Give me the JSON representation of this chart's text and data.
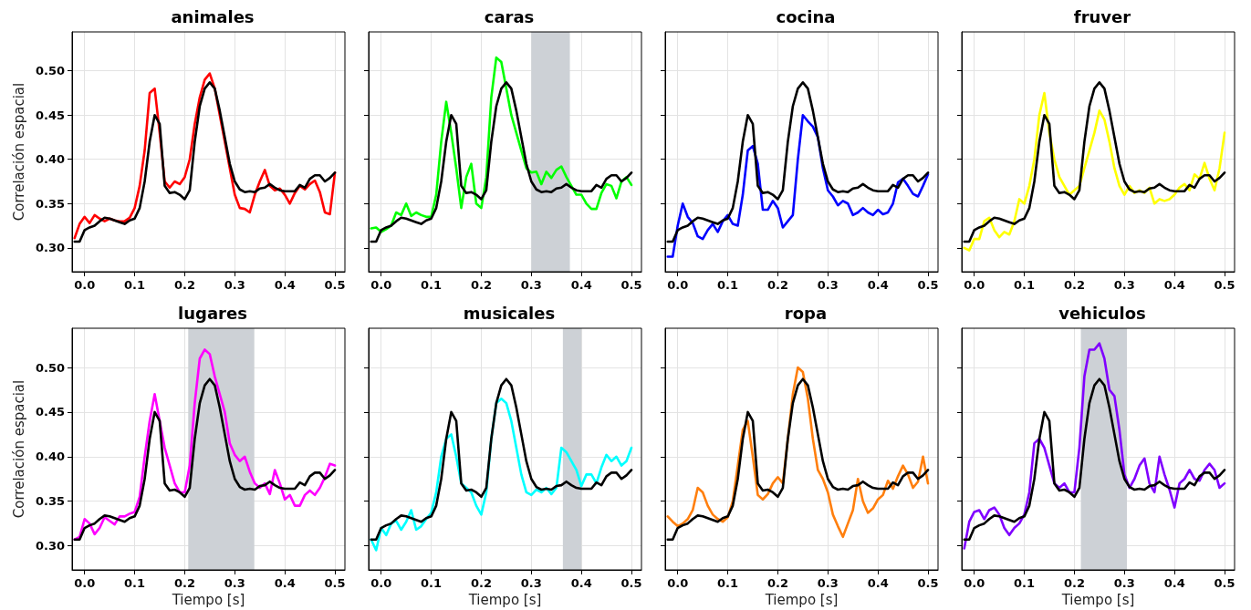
{
  "chart_data": [
    {
      "type": "line",
      "title": "animales",
      "ylabel": "Correlación espacial",
      "xlim": [
        -0.025,
        0.52
      ],
      "ylim": [
        0.273,
        0.544
      ],
      "grid": true,
      "marker": "none",
      "line_style": "solid",
      "xticks": [
        {
          "value": 0,
          "label": "0.0"
        },
        {
          "value": 0.1,
          "label": "0.1"
        },
        {
          "value": 0.2,
          "label": "0.2"
        },
        {
          "value": 0.3,
          "label": "0.3"
        },
        {
          "value": 0.4,
          "label": "0.4"
        },
        {
          "value": 0.5,
          "label": "0.5"
        }
      ],
      "yticks": [
        {
          "value": 0.3,
          "label": "0.30"
        },
        {
          "value": 0.35,
          "label": "0.35"
        },
        {
          "value": 0.4,
          "label": "0.40"
        },
        {
          "value": 0.45,
          "label": "0.45"
        },
        {
          "value": 0.5,
          "label": "0.50"
        }
      ],
      "x": [
        -0.02,
        -0.01,
        0,
        0.01,
        0.02,
        0.03,
        0.04,
        0.05,
        0.06,
        0.07,
        0.08,
        0.09,
        0.1,
        0.11,
        0.12,
        0.13,
        0.14,
        0.15,
        0.16,
        0.17,
        0.18,
        0.19,
        0.2,
        0.21,
        0.22,
        0.23,
        0.24,
        0.25,
        0.26,
        0.27,
        0.28,
        0.29,
        0.3,
        0.31,
        0.32,
        0.33,
        0.34,
        0.35,
        0.36,
        0.37,
        0.38,
        0.39,
        0.4,
        0.41,
        0.42,
        0.43,
        0.44,
        0.45,
        0.46,
        0.47,
        0.48,
        0.49,
        0.5
      ],
      "series": [
        {
          "color": "#ff0000",
          "values": [
            0.311,
            0.327,
            0.335,
            0.328,
            0.337,
            0.333,
            0.33,
            0.333,
            0.331,
            0.33,
            0.33,
            0.334,
            0.345,
            0.37,
            0.41,
            0.475,
            0.48,
            0.43,
            0.375,
            0.368,
            0.375,
            0.372,
            0.38,
            0.4,
            0.44,
            0.47,
            0.49,
            0.497,
            0.48,
            0.45,
            0.42,
            0.39,
            0.36,
            0.345,
            0.344,
            0.34,
            0.36,
            0.375,
            0.388,
            0.37,
            0.365,
            0.367,
            0.36,
            0.35,
            0.362,
            0.37,
            0.366,
            0.372,
            0.376,
            0.363,
            0.34,
            0.338,
            0.385
          ]
        },
        {
          "color": "#000000",
          "values": [
            0.307,
            0.307,
            0.32,
            0.323,
            0.325,
            0.33,
            0.334,
            0.333,
            0.331,
            0.329,
            0.327,
            0.331,
            0.333,
            0.345,
            0.375,
            0.42,
            0.45,
            0.44,
            0.37,
            0.362,
            0.363,
            0.36,
            0.355,
            0.365,
            0.42,
            0.46,
            0.48,
            0.487,
            0.48,
            0.455,
            0.425,
            0.395,
            0.375,
            0.366,
            0.363,
            0.364,
            0.363,
            0.367,
            0.368,
            0.372,
            0.368,
            0.365,
            0.364,
            0.364,
            0.364,
            0.371,
            0.368,
            0.378,
            0.382,
            0.382,
            0.375,
            0.379,
            0.385
          ]
        }
      ]
    },
    {
      "type": "line",
      "title": "caras",
      "xlim": [
        -0.025,
        0.52
      ],
      "ylim": [
        0.273,
        0.544
      ],
      "grid": true,
      "marker": "none",
      "line_style": "solid",
      "tick_labels": "x",
      "xticks": [
        {
          "value": 0,
          "label": "0.0"
        },
        {
          "value": 0.1,
          "label": "0.1"
        },
        {
          "value": 0.2,
          "label": "0.2"
        },
        {
          "value": 0.3,
          "label": "0.3"
        },
        {
          "value": 0.4,
          "label": "0.4"
        },
        {
          "value": 0.5,
          "label": "0.5"
        }
      ],
      "yticks": [
        0.3,
        0.35,
        0.4,
        0.45,
        0.5
      ],
      "bands": [
        {
          "axis": "x",
          "from": 0.3,
          "to": 0.377,
          "color": "#cdd1d6"
        }
      ],
      "x": [
        -0.02,
        -0.01,
        0,
        0.01,
        0.02,
        0.03,
        0.04,
        0.05,
        0.06,
        0.07,
        0.08,
        0.09,
        0.1,
        0.11,
        0.12,
        0.13,
        0.14,
        0.15,
        0.16,
        0.17,
        0.18,
        0.19,
        0.2,
        0.21,
        0.22,
        0.23,
        0.24,
        0.25,
        0.26,
        0.27,
        0.28,
        0.29,
        0.3,
        0.31,
        0.32,
        0.33,
        0.34,
        0.35,
        0.36,
        0.37,
        0.38,
        0.39,
        0.4,
        0.41,
        0.42,
        0.43,
        0.44,
        0.45,
        0.46,
        0.47,
        0.48,
        0.49,
        0.5
      ],
      "series": [
        {
          "color": "#00ff00",
          "values": [
            0.322,
            0.323,
            0.318,
            0.321,
            0.325,
            0.34,
            0.337,
            0.35,
            0.336,
            0.34,
            0.337,
            0.335,
            0.335,
            0.36,
            0.42,
            0.465,
            0.43,
            0.39,
            0.345,
            0.38,
            0.395,
            0.35,
            0.345,
            0.38,
            0.47,
            0.515,
            0.51,
            0.48,
            0.45,
            0.43,
            0.41,
            0.39,
            0.385,
            0.386,
            0.372,
            0.386,
            0.379,
            0.388,
            0.392,
            0.38,
            0.37,
            0.36,
            0.36,
            0.35,
            0.344,
            0.344,
            0.362,
            0.372,
            0.37,
            0.356,
            0.375,
            0.38,
            0.371
          ]
        },
        {
          "color": "#000000",
          "values": [
            0.307,
            0.307,
            0.32,
            0.323,
            0.325,
            0.33,
            0.334,
            0.333,
            0.331,
            0.329,
            0.327,
            0.331,
            0.333,
            0.345,
            0.375,
            0.42,
            0.45,
            0.44,
            0.37,
            0.362,
            0.363,
            0.36,
            0.355,
            0.365,
            0.42,
            0.46,
            0.48,
            0.487,
            0.48,
            0.455,
            0.425,
            0.395,
            0.375,
            0.366,
            0.363,
            0.364,
            0.363,
            0.367,
            0.368,
            0.372,
            0.368,
            0.365,
            0.364,
            0.364,
            0.364,
            0.371,
            0.368,
            0.378,
            0.382,
            0.382,
            0.375,
            0.379,
            0.385
          ]
        }
      ]
    },
    {
      "type": "line",
      "title": "cocina",
      "xlim": [
        -0.025,
        0.52
      ],
      "ylim": [
        0.273,
        0.544
      ],
      "grid": true,
      "marker": "none",
      "line_style": "solid",
      "tick_labels": "x",
      "xticks": [
        {
          "value": 0,
          "label": "0.0"
        },
        {
          "value": 0.1,
          "label": "0.1"
        },
        {
          "value": 0.2,
          "label": "0.2"
        },
        {
          "value": 0.3,
          "label": "0.3"
        },
        {
          "value": 0.4,
          "label": "0.4"
        },
        {
          "value": 0.5,
          "label": "0.5"
        }
      ],
      "yticks": [
        0.3,
        0.35,
        0.4,
        0.45,
        0.5
      ],
      "x": [
        -0.02,
        -0.01,
        0,
        0.01,
        0.02,
        0.03,
        0.04,
        0.05,
        0.06,
        0.07,
        0.08,
        0.09,
        0.1,
        0.11,
        0.12,
        0.13,
        0.14,
        0.15,
        0.16,
        0.17,
        0.18,
        0.19,
        0.2,
        0.21,
        0.22,
        0.23,
        0.24,
        0.25,
        0.26,
        0.27,
        0.28,
        0.29,
        0.3,
        0.31,
        0.32,
        0.33,
        0.34,
        0.35,
        0.36,
        0.37,
        0.38,
        0.39,
        0.4,
        0.41,
        0.42,
        0.43,
        0.44,
        0.45,
        0.46,
        0.47,
        0.48,
        0.49,
        0.5
      ],
      "series": [
        {
          "color": "#0000ff",
          "values": [
            0.29,
            0.29,
            0.325,
            0.35,
            0.335,
            0.328,
            0.313,
            0.31,
            0.32,
            0.327,
            0.318,
            0.33,
            0.337,
            0.327,
            0.325,
            0.36,
            0.41,
            0.415,
            0.395,
            0.343,
            0.343,
            0.353,
            0.345,
            0.323,
            0.33,
            0.337,
            0.4,
            0.45,
            0.443,
            0.437,
            0.425,
            0.39,
            0.365,
            0.358,
            0.348,
            0.353,
            0.35,
            0.337,
            0.34,
            0.345,
            0.34,
            0.337,
            0.343,
            0.338,
            0.34,
            0.35,
            0.374,
            0.378,
            0.37,
            0.361,
            0.358,
            0.37,
            0.383
          ]
        },
        {
          "color": "#000000",
          "values": [
            0.307,
            0.307,
            0.32,
            0.323,
            0.325,
            0.33,
            0.334,
            0.333,
            0.331,
            0.329,
            0.327,
            0.331,
            0.333,
            0.345,
            0.375,
            0.42,
            0.45,
            0.44,
            0.37,
            0.362,
            0.363,
            0.36,
            0.355,
            0.365,
            0.42,
            0.46,
            0.48,
            0.487,
            0.48,
            0.455,
            0.425,
            0.395,
            0.375,
            0.366,
            0.363,
            0.364,
            0.363,
            0.367,
            0.368,
            0.372,
            0.368,
            0.365,
            0.364,
            0.364,
            0.364,
            0.371,
            0.368,
            0.378,
            0.382,
            0.382,
            0.375,
            0.379,
            0.385
          ]
        }
      ]
    },
    {
      "type": "line",
      "title": "fruver",
      "xlim": [
        -0.025,
        0.52
      ],
      "ylim": [
        0.273,
        0.544
      ],
      "grid": true,
      "marker": "none",
      "line_style": "solid",
      "tick_labels": "x",
      "xticks": [
        {
          "value": 0,
          "label": "0.0"
        },
        {
          "value": 0.1,
          "label": "0.1"
        },
        {
          "value": 0.2,
          "label": "0.2"
        },
        {
          "value": 0.3,
          "label": "0.3"
        },
        {
          "value": 0.4,
          "label": "0.4"
        },
        {
          "value": 0.5,
          "label": "0.5"
        }
      ],
      "yticks": [
        0.3,
        0.35,
        0.4,
        0.45,
        0.5
      ],
      "x": [
        -0.02,
        -0.01,
        0,
        0.01,
        0.02,
        0.03,
        0.04,
        0.05,
        0.06,
        0.07,
        0.08,
        0.09,
        0.1,
        0.11,
        0.12,
        0.13,
        0.14,
        0.15,
        0.16,
        0.17,
        0.18,
        0.19,
        0.2,
        0.21,
        0.22,
        0.23,
        0.24,
        0.25,
        0.26,
        0.27,
        0.28,
        0.29,
        0.3,
        0.31,
        0.32,
        0.33,
        0.34,
        0.35,
        0.36,
        0.37,
        0.38,
        0.39,
        0.4,
        0.41,
        0.42,
        0.43,
        0.44,
        0.45,
        0.46,
        0.47,
        0.48,
        0.49,
        0.5
      ],
      "series": [
        {
          "color": "#ffff00",
          "values": [
            0.3,
            0.297,
            0.31,
            0.31,
            0.33,
            0.334,
            0.32,
            0.312,
            0.318,
            0.315,
            0.33,
            0.355,
            0.35,
            0.37,
            0.4,
            0.45,
            0.475,
            0.43,
            0.4,
            0.38,
            0.37,
            0.36,
            0.365,
            0.37,
            0.39,
            0.41,
            0.43,
            0.455,
            0.445,
            0.42,
            0.39,
            0.37,
            0.36,
            0.37,
            0.362,
            0.365,
            0.362,
            0.368,
            0.35,
            0.355,
            0.353,
            0.355,
            0.36,
            0.368,
            0.372,
            0.365,
            0.383,
            0.378,
            0.396,
            0.378,
            0.365,
            0.39,
            0.43
          ]
        },
        {
          "color": "#000000",
          "values": [
            0.307,
            0.307,
            0.32,
            0.323,
            0.325,
            0.33,
            0.334,
            0.333,
            0.331,
            0.329,
            0.327,
            0.331,
            0.333,
            0.345,
            0.375,
            0.42,
            0.45,
            0.44,
            0.37,
            0.362,
            0.363,
            0.36,
            0.355,
            0.365,
            0.42,
            0.46,
            0.48,
            0.487,
            0.48,
            0.455,
            0.425,
            0.395,
            0.375,
            0.366,
            0.363,
            0.364,
            0.363,
            0.367,
            0.368,
            0.372,
            0.368,
            0.365,
            0.364,
            0.364,
            0.364,
            0.371,
            0.368,
            0.378,
            0.382,
            0.382,
            0.375,
            0.379,
            0.385
          ]
        }
      ]
    },
    {
      "type": "line",
      "title": "lugares",
      "xlabel": "Tiempo [s]",
      "ylabel": "Correlación espacial",
      "xlim": [
        -0.025,
        0.52
      ],
      "ylim": [
        0.273,
        0.544
      ],
      "grid": true,
      "marker": "none",
      "line_style": "solid",
      "xticks": [
        {
          "value": 0,
          "label": "0.0"
        },
        {
          "value": 0.1,
          "label": "0.1"
        },
        {
          "value": 0.2,
          "label": "0.2"
        },
        {
          "value": 0.3,
          "label": "0.3"
        },
        {
          "value": 0.4,
          "label": "0.4"
        },
        {
          "value": 0.5,
          "label": "0.5"
        }
      ],
      "yticks": [
        {
          "value": 0.3,
          "label": "0.30"
        },
        {
          "value": 0.35,
          "label": "0.35"
        },
        {
          "value": 0.4,
          "label": "0.40"
        },
        {
          "value": 0.45,
          "label": "0.45"
        },
        {
          "value": 0.5,
          "label": "0.50"
        }
      ],
      "bands": [
        {
          "axis": "x",
          "from": 0.207,
          "to": 0.339,
          "color": "#cdd1d6"
        }
      ],
      "x": [
        -0.02,
        -0.01,
        0,
        0.01,
        0.02,
        0.03,
        0.04,
        0.05,
        0.06,
        0.07,
        0.08,
        0.09,
        0.1,
        0.11,
        0.12,
        0.13,
        0.14,
        0.15,
        0.16,
        0.17,
        0.18,
        0.19,
        0.2,
        0.21,
        0.22,
        0.23,
        0.24,
        0.25,
        0.26,
        0.27,
        0.28,
        0.29,
        0.3,
        0.31,
        0.32,
        0.33,
        0.34,
        0.35,
        0.36,
        0.37,
        0.38,
        0.39,
        0.4,
        0.41,
        0.42,
        0.43,
        0.44,
        0.45,
        0.46,
        0.47,
        0.48,
        0.49,
        0.5
      ],
      "series": [
        {
          "color": "#ff00ff",
          "values": [
            0.307,
            0.31,
            0.33,
            0.325,
            0.313,
            0.32,
            0.332,
            0.328,
            0.324,
            0.333,
            0.333,
            0.336,
            0.338,
            0.355,
            0.4,
            0.44,
            0.47,
            0.44,
            0.41,
            0.39,
            0.37,
            0.36,
            0.36,
            0.39,
            0.46,
            0.51,
            0.52,
            0.515,
            0.49,
            0.47,
            0.45,
            0.415,
            0.402,
            0.395,
            0.4,
            0.383,
            0.37,
            0.365,
            0.37,
            0.358,
            0.385,
            0.37,
            0.352,
            0.357,
            0.345,
            0.345,
            0.357,
            0.362,
            0.357,
            0.365,
            0.377,
            0.392,
            0.39
          ]
        },
        {
          "color": "#000000",
          "values": [
            0.307,
            0.307,
            0.32,
            0.323,
            0.325,
            0.33,
            0.334,
            0.333,
            0.331,
            0.329,
            0.327,
            0.331,
            0.333,
            0.345,
            0.375,
            0.42,
            0.45,
            0.44,
            0.37,
            0.362,
            0.363,
            0.36,
            0.355,
            0.365,
            0.42,
            0.46,
            0.48,
            0.487,
            0.48,
            0.455,
            0.425,
            0.395,
            0.375,
            0.366,
            0.363,
            0.364,
            0.363,
            0.367,
            0.368,
            0.372,
            0.368,
            0.365,
            0.364,
            0.364,
            0.364,
            0.371,
            0.368,
            0.378,
            0.382,
            0.382,
            0.375,
            0.379,
            0.385
          ]
        }
      ]
    },
    {
      "type": "line",
      "title": "musicales",
      "xlabel": "Tiempo [s]",
      "xlim": [
        -0.025,
        0.52
      ],
      "ylim": [
        0.273,
        0.544
      ],
      "grid": true,
      "marker": "none",
      "line_style": "solid",
      "tick_labels": "x",
      "xticks": [
        {
          "value": 0,
          "label": "0.0"
        },
        {
          "value": 0.1,
          "label": "0.1"
        },
        {
          "value": 0.2,
          "label": "0.2"
        },
        {
          "value": 0.3,
          "label": "0.3"
        },
        {
          "value": 0.4,
          "label": "0.4"
        },
        {
          "value": 0.5,
          "label": "0.5"
        }
      ],
      "yticks": [
        0.3,
        0.35,
        0.4,
        0.45,
        0.5
      ],
      "bands": [
        {
          "axis": "x",
          "from": 0.363,
          "to": 0.4,
          "color": "#cdd1d6"
        }
      ],
      "x": [
        -0.02,
        -0.01,
        0,
        0.01,
        0.02,
        0.03,
        0.04,
        0.05,
        0.06,
        0.07,
        0.08,
        0.09,
        0.1,
        0.11,
        0.12,
        0.13,
        0.14,
        0.15,
        0.16,
        0.17,
        0.18,
        0.19,
        0.2,
        0.21,
        0.22,
        0.23,
        0.24,
        0.25,
        0.26,
        0.27,
        0.28,
        0.29,
        0.3,
        0.31,
        0.32,
        0.33,
        0.34,
        0.35,
        0.36,
        0.37,
        0.38,
        0.39,
        0.4,
        0.41,
        0.42,
        0.43,
        0.44,
        0.45,
        0.46,
        0.47,
        0.48,
        0.49,
        0.5
      ],
      "series": [
        {
          "color": "#00ffff",
          "values": [
            0.307,
            0.295,
            0.32,
            0.312,
            0.325,
            0.328,
            0.318,
            0.327,
            0.34,
            0.318,
            0.322,
            0.33,
            0.337,
            0.36,
            0.4,
            0.42,
            0.425,
            0.4,
            0.37,
            0.365,
            0.36,
            0.345,
            0.335,
            0.36,
            0.42,
            0.46,
            0.465,
            0.46,
            0.44,
            0.41,
            0.38,
            0.36,
            0.357,
            0.363,
            0.36,
            0.365,
            0.358,
            0.365,
            0.41,
            0.405,
            0.395,
            0.385,
            0.367,
            0.38,
            0.38,
            0.37,
            0.388,
            0.402,
            0.395,
            0.4,
            0.39,
            0.395,
            0.41
          ]
        },
        {
          "color": "#000000",
          "values": [
            0.307,
            0.307,
            0.32,
            0.323,
            0.325,
            0.33,
            0.334,
            0.333,
            0.331,
            0.329,
            0.327,
            0.331,
            0.333,
            0.345,
            0.375,
            0.42,
            0.45,
            0.44,
            0.37,
            0.362,
            0.363,
            0.36,
            0.355,
            0.365,
            0.42,
            0.46,
            0.48,
            0.487,
            0.48,
            0.455,
            0.425,
            0.395,
            0.375,
            0.366,
            0.363,
            0.364,
            0.363,
            0.367,
            0.368,
            0.372,
            0.368,
            0.365,
            0.364,
            0.364,
            0.364,
            0.371,
            0.368,
            0.378,
            0.382,
            0.382,
            0.375,
            0.379,
            0.385
          ]
        }
      ]
    },
    {
      "type": "line",
      "title": "ropa",
      "xlabel": "Tiempo [s]",
      "xlim": [
        -0.025,
        0.52
      ],
      "ylim": [
        0.273,
        0.544
      ],
      "grid": true,
      "marker": "none",
      "line_style": "solid",
      "tick_labels": "x",
      "xticks": [
        {
          "value": 0,
          "label": "0.0"
        },
        {
          "value": 0.1,
          "label": "0.1"
        },
        {
          "value": 0.2,
          "label": "0.2"
        },
        {
          "value": 0.3,
          "label": "0.3"
        },
        {
          "value": 0.4,
          "label": "0.4"
        },
        {
          "value": 0.5,
          "label": "0.5"
        }
      ],
      "yticks": [
        0.3,
        0.35,
        0.4,
        0.45,
        0.5
      ],
      "x": [
        -0.02,
        -0.01,
        0,
        0.01,
        0.02,
        0.03,
        0.04,
        0.05,
        0.06,
        0.07,
        0.08,
        0.09,
        0.1,
        0.11,
        0.12,
        0.13,
        0.14,
        0.15,
        0.16,
        0.17,
        0.18,
        0.19,
        0.2,
        0.21,
        0.22,
        0.23,
        0.24,
        0.25,
        0.26,
        0.27,
        0.28,
        0.29,
        0.3,
        0.31,
        0.32,
        0.33,
        0.34,
        0.35,
        0.36,
        0.37,
        0.38,
        0.39,
        0.4,
        0.41,
        0.42,
        0.43,
        0.44,
        0.45,
        0.46,
        0.47,
        0.48,
        0.49,
        0.5
      ],
      "series": [
        {
          "color": "#ff7f0e",
          "values": [
            0.333,
            0.327,
            0.322,
            0.325,
            0.33,
            0.34,
            0.365,
            0.36,
            0.345,
            0.335,
            0.33,
            0.327,
            0.332,
            0.35,
            0.39,
            0.43,
            0.44,
            0.4,
            0.357,
            0.352,
            0.358,
            0.37,
            0.377,
            0.37,
            0.42,
            0.47,
            0.5,
            0.495,
            0.465,
            0.42,
            0.385,
            0.375,
            0.36,
            0.335,
            0.322,
            0.31,
            0.325,
            0.34,
            0.375,
            0.35,
            0.337,
            0.342,
            0.352,
            0.357,
            0.373,
            0.364,
            0.378,
            0.39,
            0.38,
            0.365,
            0.372,
            0.4,
            0.37
          ]
        },
        {
          "color": "#000000",
          "values": [
            0.307,
            0.307,
            0.32,
            0.323,
            0.325,
            0.33,
            0.334,
            0.333,
            0.331,
            0.329,
            0.327,
            0.331,
            0.333,
            0.345,
            0.375,
            0.42,
            0.45,
            0.44,
            0.37,
            0.362,
            0.363,
            0.36,
            0.355,
            0.365,
            0.42,
            0.46,
            0.48,
            0.487,
            0.48,
            0.455,
            0.425,
            0.395,
            0.375,
            0.366,
            0.363,
            0.364,
            0.363,
            0.367,
            0.368,
            0.372,
            0.368,
            0.365,
            0.364,
            0.364,
            0.364,
            0.371,
            0.368,
            0.378,
            0.382,
            0.382,
            0.375,
            0.379,
            0.385
          ]
        }
      ]
    },
    {
      "type": "line",
      "title": "vehiculos",
      "xlabel": "Tiempo [s]",
      "xlim": [
        -0.025,
        0.52
      ],
      "ylim": [
        0.273,
        0.544
      ],
      "grid": true,
      "marker": "none",
      "line_style": "solid",
      "tick_labels": "x",
      "xticks": [
        {
          "value": 0,
          "label": "0.0"
        },
        {
          "value": 0.1,
          "label": "0.1"
        },
        {
          "value": 0.2,
          "label": "0.2"
        },
        {
          "value": 0.3,
          "label": "0.3"
        },
        {
          "value": 0.4,
          "label": "0.4"
        },
        {
          "value": 0.5,
          "label": "0.5"
        }
      ],
      "yticks": [
        0.3,
        0.35,
        0.4,
        0.45,
        0.5
      ],
      "bands": [
        {
          "axis": "x",
          "from": 0.213,
          "to": 0.305,
          "color": "#cdd1d6"
        }
      ],
      "x": [
        -0.02,
        -0.01,
        0,
        0.01,
        0.02,
        0.03,
        0.04,
        0.05,
        0.06,
        0.07,
        0.08,
        0.09,
        0.1,
        0.11,
        0.12,
        0.13,
        0.14,
        0.15,
        0.16,
        0.17,
        0.18,
        0.19,
        0.2,
        0.21,
        0.22,
        0.23,
        0.24,
        0.25,
        0.26,
        0.27,
        0.28,
        0.29,
        0.3,
        0.31,
        0.32,
        0.33,
        0.34,
        0.35,
        0.36,
        0.37,
        0.38,
        0.39,
        0.4,
        0.41,
        0.42,
        0.43,
        0.44,
        0.45,
        0.46,
        0.47,
        0.48,
        0.49,
        0.5
      ],
      "series": [
        {
          "color": "#8000ff",
          "values": [
            0.297,
            0.327,
            0.338,
            0.34,
            0.33,
            0.34,
            0.343,
            0.335,
            0.32,
            0.312,
            0.32,
            0.325,
            0.335,
            0.36,
            0.415,
            0.42,
            0.41,
            0.39,
            0.37,
            0.365,
            0.37,
            0.36,
            0.36,
            0.41,
            0.49,
            0.52,
            0.52,
            0.527,
            0.51,
            0.475,
            0.468,
            0.43,
            0.38,
            0.365,
            0.375,
            0.39,
            0.398,
            0.37,
            0.36,
            0.4,
            0.38,
            0.363,
            0.343,
            0.37,
            0.375,
            0.385,
            0.375,
            0.373,
            0.385,
            0.392,
            0.385,
            0.365,
            0.37
          ]
        },
        {
          "color": "#000000",
          "values": [
            0.307,
            0.307,
            0.32,
            0.323,
            0.325,
            0.33,
            0.334,
            0.333,
            0.331,
            0.329,
            0.327,
            0.331,
            0.333,
            0.345,
            0.375,
            0.42,
            0.45,
            0.44,
            0.37,
            0.362,
            0.363,
            0.36,
            0.355,
            0.365,
            0.42,
            0.46,
            0.48,
            0.487,
            0.48,
            0.455,
            0.425,
            0.395,
            0.375,
            0.366,
            0.363,
            0.364,
            0.363,
            0.367,
            0.368,
            0.372,
            0.368,
            0.365,
            0.364,
            0.364,
            0.364,
            0.371,
            0.368,
            0.378,
            0.382,
            0.382,
            0.375,
            0.379,
            0.385
          ]
        }
      ]
    }
  ]
}
